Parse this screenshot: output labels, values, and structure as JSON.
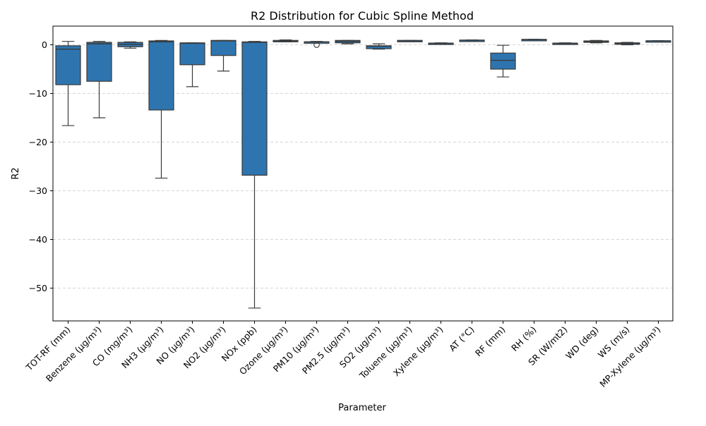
{
  "chart_data": {
    "type": "box",
    "title": "R2 Distribution for Cubic Spline Method",
    "xlabel": "Parameter",
    "ylabel": "R2",
    "ylim": [
      -57,
      4
    ],
    "yticks": [
      0,
      -10,
      -20,
      -30,
      -40,
      -50
    ],
    "ytick_labels": [
      "0",
      "−10",
      "−20",
      "−30",
      "−40",
      "−50"
    ],
    "grid": "horizontal dashed",
    "box_color": "#2e75b0",
    "categories": [
      "TOT-RF (mm)",
      "Benzene (µg/m³)",
      "CO (mg/m³)",
      "NH3 (µg/m³)",
      "NO (µg/m³)",
      "NO2 (µg/m³)",
      "NOx (ppb)",
      "Ozone (µg/m³)",
      "PM10 (µg/m³)",
      "PM2.5 (µg/m³)",
      "SO2 (µg/m³)",
      "Toluene (µg/m³)",
      "Xylene (µg/m³)",
      "AT (°C)",
      "RF (mm)",
      "RH (%)",
      "SR (W/mt2)",
      "WD (deg)",
      "WS (m/s)",
      "MP-Xylene (µg/m³)"
    ],
    "boxes": [
      {
        "whislo": -16.6,
        "q1": -8.2,
        "med": -0.9,
        "q3": -0.2,
        "whishi": 0.7,
        "fliers": []
      },
      {
        "whislo": -15.0,
        "q1": -7.5,
        "med": 0.2,
        "q3": 0.5,
        "whishi": 0.7,
        "fliers": []
      },
      {
        "whislo": -0.7,
        "q1": -0.4,
        "med": 0.1,
        "q3": 0.5,
        "whishi": 0.6,
        "fliers": []
      },
      {
        "whislo": -27.4,
        "q1": -13.4,
        "med": 0.6,
        "q3": 0.8,
        "whishi": 0.9,
        "fliers": []
      },
      {
        "whislo": -8.6,
        "q1": -4.1,
        "med": 0.3,
        "q3": 0.4,
        "whishi": 0.4,
        "fliers": []
      },
      {
        "whislo": -5.4,
        "q1": -2.2,
        "med": 0.8,
        "q3": 0.9,
        "whishi": 0.9,
        "fliers": []
      },
      {
        "whislo": -54.1,
        "q1": -26.8,
        "med": 0.5,
        "q3": 0.6,
        "whishi": 0.7,
        "fliers": []
      },
      {
        "whislo": 0.6,
        "q1": 0.7,
        "med": 0.8,
        "q3": 0.9,
        "whishi": 1.0,
        "fliers": []
      },
      {
        "whislo": 0.4,
        "q1": 0.5,
        "med": 0.6,
        "q3": 0.6,
        "whishi": 0.7,
        "fliers": [
          0.0
        ]
      },
      {
        "whislo": 0.2,
        "q1": 0.4,
        "med": 0.7,
        "q3": 0.9,
        "whishi": 0.9,
        "fliers": []
      },
      {
        "whislo": -0.9,
        "q1": -0.8,
        "med": -0.3,
        "q3": -0.2,
        "whishi": 0.2,
        "fliers": []
      },
      {
        "whislo": 0.7,
        "q1": 0.8,
        "med": 0.85,
        "q3": 0.9,
        "whishi": 0.9,
        "fliers": []
      },
      {
        "whislo": 0.2,
        "q1": 0.25,
        "med": 0.3,
        "q3": 0.35,
        "whishi": 0.4,
        "fliers": []
      },
      {
        "whislo": 0.85,
        "q1": 0.9,
        "med": 0.95,
        "q3": 0.95,
        "whishi": 1.0,
        "fliers": []
      },
      {
        "whislo": -6.6,
        "q1": -5.0,
        "med": -3.2,
        "q3": -1.7,
        "whishi": -0.1,
        "fliers": []
      },
      {
        "whislo": 1.0,
        "q1": 1.05,
        "med": 1.1,
        "q3": 1.1,
        "whishi": 1.15,
        "fliers": []
      },
      {
        "whislo": 0.2,
        "q1": 0.25,
        "med": 0.3,
        "q3": 0.35,
        "whishi": 0.4,
        "fliers": []
      },
      {
        "whislo": 0.4,
        "q1": 0.5,
        "med": 0.7,
        "q3": 0.8,
        "whishi": 0.9,
        "fliers": []
      },
      {
        "whislo": 0.0,
        "q1": 0.1,
        "med": 0.3,
        "q3": 0.4,
        "whishi": 0.5,
        "fliers": []
      },
      {
        "whislo": 0.75,
        "q1": 0.78,
        "med": 0.8,
        "q3": 0.82,
        "whishi": 0.85,
        "fliers": []
      }
    ]
  }
}
